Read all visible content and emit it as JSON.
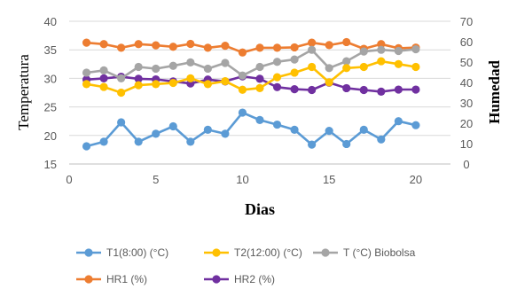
{
  "chart_data": {
    "type": "line",
    "title": "",
    "xlabel": "Dias",
    "ylabel_left": "Temperatura",
    "ylabel_right": "Humedad",
    "xlim": [
      0,
      22
    ],
    "ylim_left": [
      15,
      40
    ],
    "ylim_right": [
      0,
      70
    ],
    "x_ticks": [
      0,
      5,
      10,
      15,
      20
    ],
    "y_ticks_left": [
      15,
      20,
      25,
      30,
      35,
      40
    ],
    "y_ticks_right": [
      0,
      10,
      20,
      30,
      40,
      50,
      60,
      70
    ],
    "grid": "horizontal",
    "legend_position": "bottom",
    "x": [
      1,
      2,
      3,
      4,
      5,
      6,
      7,
      8,
      9,
      10,
      11,
      12,
      13,
      14,
      15,
      16,
      17,
      18,
      19,
      20
    ],
    "series": [
      {
        "name": "T1(8:00) (°C)",
        "axis": "left",
        "color": "#5b9bd5",
        "values": [
          18.1,
          18.9,
          22.3,
          18.9,
          20.3,
          21.6,
          18.9,
          21.0,
          20.3,
          24.0,
          22.7,
          21.9,
          21.0,
          18.4,
          20.8,
          18.5,
          21.0,
          19.3,
          22.5,
          21.8
        ]
      },
      {
        "name": "T2(12:00) (°C)",
        "axis": "left",
        "color": "#ffc000",
        "values": [
          29.0,
          28.5,
          27.5,
          28.8,
          29.0,
          29.2,
          30.0,
          29.0,
          29.5,
          28.0,
          28.3,
          30.2,
          31.0,
          32.0,
          29.3,
          31.8,
          32.0,
          33.0,
          32.5,
          32.0
        ]
      },
      {
        "name": "T (°C) Biobolsa",
        "axis": "left",
        "color": "#a5a5a5",
        "values": [
          31.0,
          31.4,
          30.0,
          32.0,
          31.7,
          32.2,
          32.8,
          31.7,
          32.7,
          30.5,
          32.0,
          32.9,
          33.3,
          35.0,
          31.8,
          33.0,
          34.7,
          35.0,
          34.8,
          35.1
        ]
      },
      {
        "name": "HR1 (%)",
        "axis": "right",
        "color": "#ed7d31",
        "values": [
          59.5,
          58.8,
          57.0,
          58.8,
          58.2,
          57.5,
          58.9,
          57.0,
          58.0,
          54.7,
          57.0,
          57.0,
          57.2,
          59.5,
          58.3,
          59.8,
          56.5,
          58.8,
          56.8,
          57.1
        ]
      },
      {
        "name": "HR2 (%)",
        "axis": "right",
        "color": "#7030a0",
        "values": [
          41.4,
          42.0,
          42.8,
          41.8,
          41.5,
          40.5,
          39.5,
          41.4,
          40.5,
          43.0,
          41.8,
          37.7,
          36.7,
          36.3,
          39.9,
          37.2,
          36.3,
          35.5,
          36.5,
          36.5
        ]
      }
    ]
  }
}
